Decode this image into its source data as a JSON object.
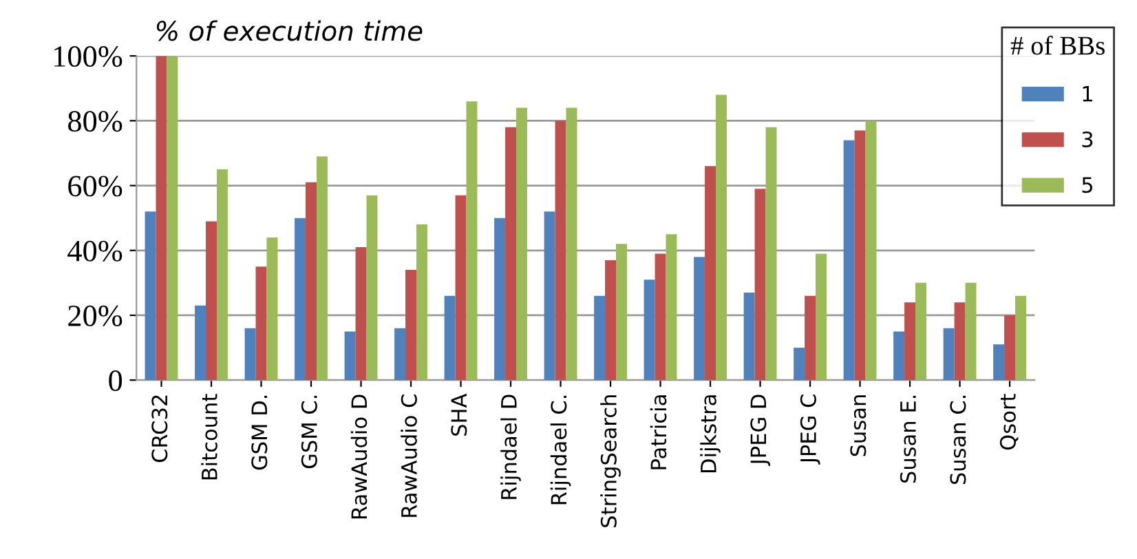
{
  "chart_data": {
    "type": "bar",
    "title": "% of execution time",
    "legend_title": "# of BBs",
    "categories": [
      "CRC32",
      "Bitcount",
      "GSM D.",
      "GSM C.",
      "RawAudio D",
      "RawAudio C",
      "SHA",
      "Rijndael D",
      "Rijndael C.",
      "StringSearch",
      "Patricia",
      "Dijkstra",
      "JPEG D",
      "JPEG C",
      "Susan",
      "Susan E.",
      "Susan C.",
      "Qsort"
    ],
    "series": [
      {
        "name": "1",
        "color": "#4f81bd",
        "values": [
          52,
          23,
          16,
          50,
          15,
          16,
          26,
          50,
          52,
          26,
          31,
          38,
          27,
          10,
          74,
          15,
          16,
          11
        ]
      },
      {
        "name": "3",
        "color": "#c0504d",
        "values": [
          100,
          49,
          35,
          61,
          41,
          34,
          57,
          78,
          80,
          37,
          39,
          66,
          59,
          26,
          77,
          24,
          24,
          20
        ]
      },
      {
        "name": "5",
        "color": "#9bbb59",
        "values": [
          100,
          65,
          44,
          69,
          57,
          48,
          86,
          84,
          84,
          42,
          45,
          88,
          78,
          39,
          80,
          30,
          30,
          26
        ]
      }
    ],
    "ylim": [
      0,
      100
    ],
    "yticks": [
      {
        "value": 0,
        "label": "0"
      },
      {
        "value": 20,
        "label": "20%"
      },
      {
        "value": 40,
        "label": "40%"
      },
      {
        "value": 60,
        "label": "60%"
      },
      {
        "value": 80,
        "label": "80%"
      },
      {
        "value": 100,
        "label": "100%"
      }
    ],
    "grid": "y",
    "legend": "top right"
  }
}
